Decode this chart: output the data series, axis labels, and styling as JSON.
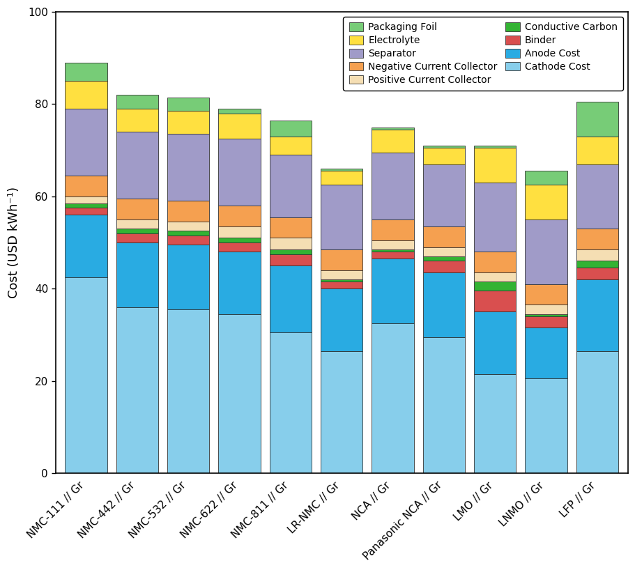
{
  "categories": [
    "NMC-111 // Gr",
    "NMC-442 // Gr",
    "NMC-532 // Gr",
    "NMC-622 // Gr",
    "NMC-811 // Gr",
    "LR-NMC // Gr",
    "NCA // Gr",
    "Panasonic NCA // Gr",
    "LMO // Gr",
    "LNMO // Gr",
    "LFP // Gr"
  ],
  "components": [
    "Cathode Cost",
    "Anode Cost",
    "Binder",
    "Conductive Carbon",
    "Positive Current Collector",
    "Negative Current Collector",
    "Separator",
    "Electrolyte",
    "Packaging Foil"
  ],
  "colors": [
    "#87CEEB",
    "#29ABE2",
    "#D94F4F",
    "#33B333",
    "#F5DEB3",
    "#F5A050",
    "#A09BC8",
    "#FFE040",
    "#77CC77"
  ],
  "values": {
    "Cathode Cost": [
      42.5,
      36.0,
      35.5,
      34.5,
      30.5,
      26.5,
      32.5,
      29.5,
      21.5,
      20.5,
      26.5
    ],
    "Anode Cost": [
      13.5,
      14.0,
      14.0,
      13.5,
      14.5,
      13.5,
      14.0,
      14.0,
      13.5,
      11.0,
      15.5
    ],
    "Binder": [
      1.5,
      2.0,
      2.0,
      2.0,
      2.5,
      1.5,
      1.5,
      2.5,
      4.5,
      2.5,
      2.5
    ],
    "Conductive Carbon": [
      1.0,
      1.0,
      1.0,
      1.0,
      1.0,
      0.5,
      0.5,
      1.0,
      2.0,
      0.5,
      1.5
    ],
    "Positive Current Collector": [
      1.5,
      2.0,
      2.0,
      2.5,
      2.5,
      2.0,
      2.0,
      2.0,
      2.0,
      2.0,
      2.5
    ],
    "Negative Current Collector": [
      4.5,
      4.5,
      4.5,
      4.5,
      4.5,
      4.5,
      4.5,
      4.5,
      4.5,
      4.5,
      4.5
    ],
    "Separator": [
      14.5,
      14.5,
      14.5,
      14.5,
      13.5,
      14.0,
      14.5,
      13.5,
      15.0,
      14.0,
      14.0
    ],
    "Electrolyte": [
      6.0,
      5.0,
      5.0,
      5.5,
      4.0,
      3.0,
      5.0,
      3.5,
      7.5,
      7.5,
      6.0
    ],
    "Packaging Foil": [
      4.0,
      3.0,
      3.0,
      1.0,
      3.5,
      0.5,
      0.5,
      0.5,
      0.5,
      3.0,
      7.5
    ]
  },
  "legend_order": [
    "Packaging Foil",
    "Electrolyte",
    "Separator",
    "Negative Current Collector",
    "Positive Current Collector",
    "Conductive Carbon",
    "Binder",
    "Anode Cost",
    "Cathode Cost"
  ],
  "ylabel": "Cost (USD kWh⁻¹)",
  "ylim": [
    0,
    100
  ],
  "yticks": [
    0,
    20,
    40,
    60,
    80,
    100
  ],
  "figure_facecolor": "#ffffff",
  "axes_facecolor": "#ffffff",
  "bar_width": 0.82,
  "label_fontsize": 13,
  "tick_fontsize": 11,
  "legend_fontsize": 10
}
